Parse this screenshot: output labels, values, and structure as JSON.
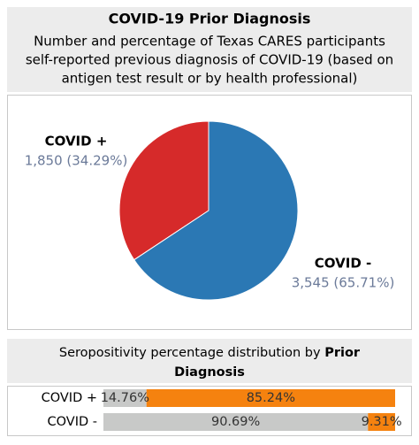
{
  "chart_data": [
    {
      "type": "pie",
      "title": "COVID-19 Prior Diagnosis",
      "subtitle": [
        "Number and percentage of Texas CARES participants",
        "self-reported previous diagnosis of COVID-19 (based on",
        "antigen test result or by health professional)"
      ],
      "categories": [
        "COVID +",
        "COVID -"
      ],
      "values": [
        1850,
        3545
      ],
      "value_labels": [
        "1,850 (34.29%)",
        "3,545 (65.71%)"
      ],
      "colors": [
        "#d62a2a",
        "#2b78b4"
      ]
    },
    {
      "type": "stacked-bar-horizontal",
      "title": "Seropositivity percentage distribution by",
      "title_bold": [
        "Prior",
        "Diagnosis"
      ],
      "categories": [
        "COVID +",
        "COVID -"
      ],
      "xlim": [
        0,
        100
      ],
      "series": [
        {
          "color": "#c8c9c8",
          "values": [
            14.76,
            90.69
          ],
          "value_labels": [
            "14.76%",
            "90.69%"
          ]
        },
        {
          "color": "#f5820f",
          "values": [
            85.24,
            9.31
          ],
          "value_labels": [
            "85.24%",
            "9.31%"
          ]
        }
      ]
    }
  ]
}
